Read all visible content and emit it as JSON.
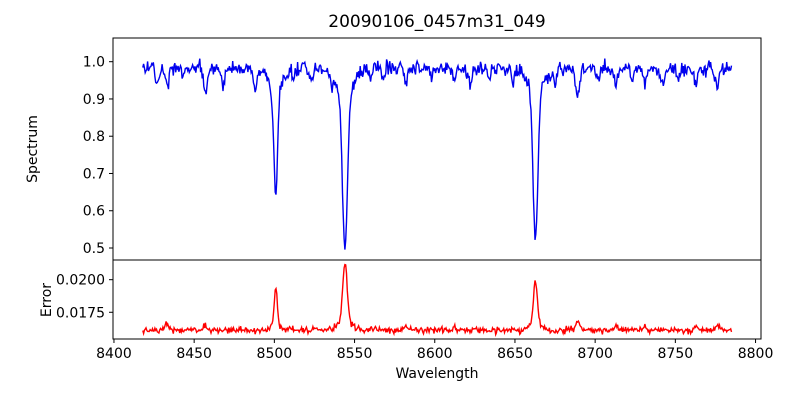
{
  "chart_data": {
    "type": "line",
    "title": "20090106_0457m31_049",
    "xlabel": "Wavelength",
    "grid": false,
    "legend": "none",
    "x_range_data": [
      8418,
      8785
    ],
    "n_points": 735,
    "xlim": [
      8399.4,
      8803.4
    ],
    "xticks": [
      8400,
      8450,
      8500,
      8550,
      8600,
      8650,
      8700,
      8750,
      8800
    ],
    "xtick_labels": [
      "8400",
      "8450",
      "8500",
      "8550",
      "8600",
      "8650",
      "8700",
      "8750",
      "8800"
    ],
    "feature_columns": [
      "center_wavelength",
      "amplitude",
      "sigma_wavelength"
    ],
    "subplots": [
      {
        "name": "spectrum",
        "ylabel": "Spectrum",
        "ylim": [
          0.4678,
          1.0636
        ],
        "yticks": [
          0.5,
          0.6,
          0.7,
          0.8,
          0.9,
          1.0
        ],
        "ytick_labels": [
          "0.5",
          "0.6",
          "0.7",
          "0.8",
          "0.9",
          "1.0"
        ],
        "line_color": "#0000ee",
        "continuum_level": 0.982,
        "noise_sigma": 0.0095,
        "noise_seed": 20090106,
        "absorption_lines": [
          [
            8500.8,
            0.28,
            1.2
          ],
          [
            8500.8,
            0.06,
            4.0
          ],
          [
            8544.0,
            0.41,
            1.55
          ],
          [
            8544.0,
            0.075,
            5.0
          ],
          [
            8662.8,
            0.385,
            1.45
          ],
          [
            8662.8,
            0.07,
            4.5
          ],
          [
            8427,
            0.03,
            0.9
          ],
          [
            8433,
            0.048,
            1.0
          ],
          [
            8443,
            0.025,
            0.8
          ],
          [
            8457,
            0.07,
            1.1
          ],
          [
            8468,
            0.045,
            1.0
          ],
          [
            8488,
            0.058,
            1.1
          ],
          [
            8512,
            0.032,
            0.9
          ],
          [
            8523,
            0.034,
            1.0
          ],
          [
            8536,
            0.028,
            0.9
          ],
          [
            8560,
            0.03,
            0.9
          ],
          [
            8568,
            0.028,
            0.9
          ],
          [
            8582,
            0.042,
            1.0
          ],
          [
            8598,
            0.032,
            0.9
          ],
          [
            8612,
            0.04,
            1.0
          ],
          [
            8622,
            0.046,
            1.1
          ],
          [
            8634,
            0.028,
            0.9
          ],
          [
            8649,
            0.042,
            1.0
          ],
          [
            8675,
            0.034,
            0.9
          ],
          [
            8689,
            0.075,
            1.2
          ],
          [
            8702,
            0.028,
            0.9
          ],
          [
            8713,
            0.048,
            1.0
          ],
          [
            8723,
            0.03,
            0.9
          ],
          [
            8731,
            0.048,
            1.0
          ],
          [
            8742,
            0.042,
            1.0
          ],
          [
            8752,
            0.028,
            0.9
          ],
          [
            8763,
            0.048,
            1.0
          ],
          [
            8776,
            0.05,
            1.0
          ]
        ],
        "key_features": {
          "continuum_level": 0.98,
          "deep_absorption_minima": [
            {
              "wavelength": 8501,
              "flux": 0.64
            },
            {
              "wavelength": 8544,
              "flux": 0.5
            },
            {
              "wavelength": 8663,
              "flux": 0.52
            }
          ]
        }
      },
      {
        "name": "error",
        "ylabel": "Error",
        "ylim": [
          0.01545,
          0.02151
        ],
        "yticks": [
          0.0175,
          0.02
        ],
        "ytick_labels": [
          "0.0175",
          "0.0200"
        ],
        "line_color": "#ff0000",
        "baseline_level": 0.01613,
        "noise_sigma": 0.00012,
        "noise_seed": 457031,
        "emission_peaks": [
          [
            8500.8,
            0.0028,
            0.95
          ],
          [
            8500.8,
            0.0004,
            3.0
          ],
          [
            8544.0,
            0.0043,
            1.35
          ],
          [
            8544.0,
            0.0008,
            4.0
          ],
          [
            8662.8,
            0.0033,
            1.15
          ],
          [
            8662.8,
            0.0006,
            3.5
          ],
          [
            8433,
            0.0005,
            1.1
          ],
          [
            8457,
            0.0004,
            1.0
          ],
          [
            8582,
            0.0004,
            1.0
          ],
          [
            8612,
            0.0003,
            0.9
          ],
          [
            8689,
            0.0008,
            1.1
          ],
          [
            8713,
            0.0004,
            1.0
          ],
          [
            8731,
            0.0004,
            1.0
          ],
          [
            8763,
            0.0004,
            1.0
          ],
          [
            8776,
            0.0004,
            1.0
          ]
        ],
        "key_features": {
          "baseline_level": 0.016,
          "error_peaks": [
            {
              "wavelength": 8501,
              "error": 0.0194
            },
            {
              "wavelength": 8544,
              "error": 0.0213
            },
            {
              "wavelength": 8663,
              "error": 0.0201
            }
          ]
        }
      }
    ]
  }
}
